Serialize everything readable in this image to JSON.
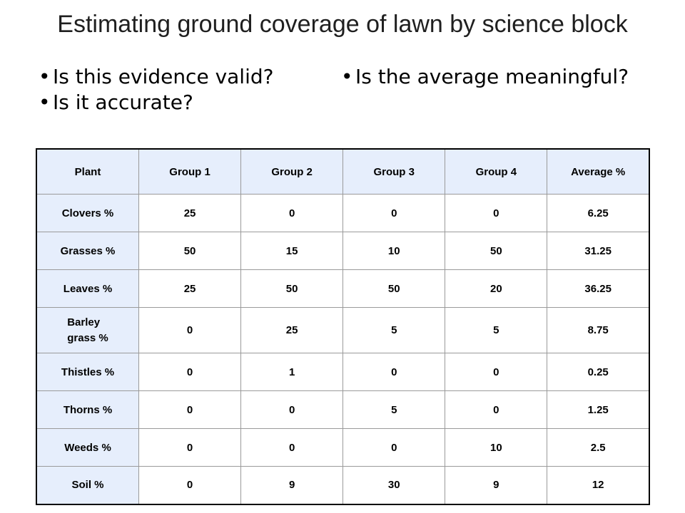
{
  "title": "Estimating ground coverage of lawn by science block",
  "bullets_left": [
    "Is this evidence valid?",
    "Is it accurate?"
  ],
  "bullets_right": [
    "Is the average meaningful?"
  ],
  "bullet_glyph": "•",
  "table": {
    "headers": [
      "Plant",
      "Group 1",
      "Group 2",
      "Group 3",
      "Group 4",
      "Average %"
    ],
    "rows": [
      {
        "plant": "Clovers %",
        "values": [
          "25",
          "0",
          "0",
          "0",
          "6.25"
        ]
      },
      {
        "plant": "Grasses %",
        "values": [
          "50",
          "15",
          "10",
          "50",
          "31.25"
        ]
      },
      {
        "plant": "Leaves %",
        "values": [
          "25",
          "50",
          "50",
          "20",
          "36.25"
        ]
      },
      {
        "plant": "Barley grass %",
        "plant_lines": [
          "Barley",
          "grass %"
        ],
        "values": [
          "0",
          "25",
          "5",
          "5",
          "8.75"
        ]
      },
      {
        "plant": "Thistles %",
        "values": [
          "0",
          "1",
          "0",
          "0",
          "0.25"
        ]
      },
      {
        "plant": "Thorns %",
        "values": [
          "0",
          "0",
          "5",
          "0",
          "1.25"
        ]
      },
      {
        "plant": "Weeds %",
        "values": [
          "0",
          "0",
          "0",
          "10",
          "2.5"
        ]
      },
      {
        "plant": "Soil %",
        "values": [
          "0",
          "9",
          "30",
          "9",
          "12"
        ]
      }
    ]
  },
  "colors": {
    "header_fill": "#e6eefc",
    "title_text": "#1f1f1f",
    "grid_line": "#9a9a9a",
    "outer_border": "#000000"
  }
}
